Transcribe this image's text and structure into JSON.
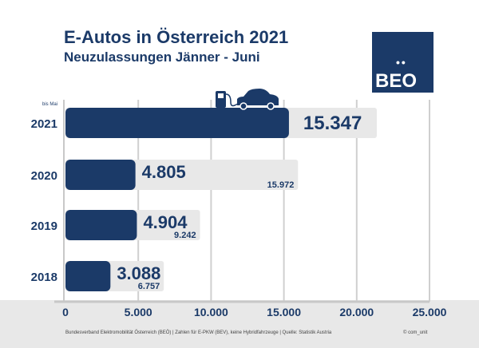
{
  "header": {
    "title": "E-Autos in Österreich 2021",
    "subtitle": "Neuzulassungen Jänner - Juni"
  },
  "logo": {
    "text": "BEO",
    "dots": "••"
  },
  "footer": {
    "source": "Bundesverband Elektromobilität Österreich (BEÖ) | Zahlen für E-PKW (BEV), keine Hybridfahrzeuge | Quelle: Statistik Austria",
    "copyright": "© com_unit"
  },
  "colors": {
    "bar": "#1b3a68",
    "background_bar": "#e8e8e8",
    "band": "#e8e8e8",
    "grid": "#cfcfcf"
  },
  "chart_data": {
    "type": "bar",
    "orientation": "horizontal",
    "categories": [
      "2021",
      "2020",
      "2019",
      "2018"
    ],
    "category_notes": [
      "bis Mai",
      "",
      "",
      ""
    ],
    "series": [
      {
        "values": [
          15347,
          4805,
          4904,
          3088
        ],
        "labels": [
          "15.347",
          "4.805",
          "4.904",
          "3.088"
        ]
      },
      {
        "values": [
          null,
          15972,
          9242,
          6757
        ],
        "labels": [
          "",
          "15.972",
          "9.242",
          "6.757"
        ]
      }
    ],
    "xlim": [
      0,
      25000
    ],
    "xticks": [
      0,
      5000,
      10000,
      15000,
      20000,
      25000
    ],
    "xtick_labels": [
      "0",
      "5.000",
      "10.000",
      "15.000",
      "20.000",
      "25.000"
    ],
    "grid": true,
    "icon": "car-charging-icon"
  }
}
